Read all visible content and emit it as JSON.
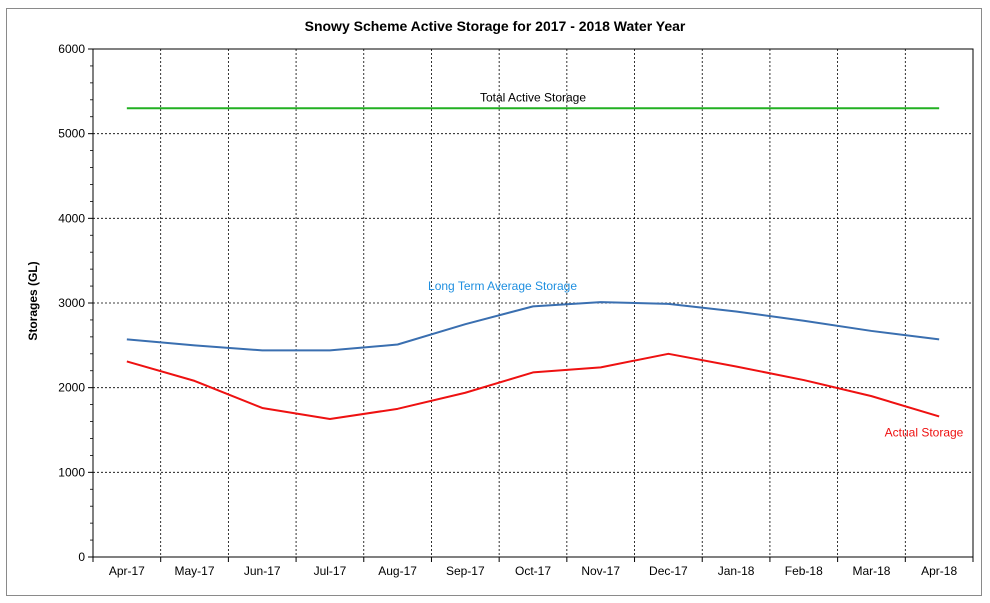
{
  "chart_data": {
    "type": "line",
    "title": "Snowy Scheme Active  Storage for 2017 - 2018 Water Year",
    "xlabel": "",
    "ylabel": "Storages (GL)",
    "categories": [
      "Apr-17",
      "May-17",
      "Jun-17",
      "Jul-17",
      "Aug-17",
      "Sep-17",
      "Oct-17",
      "Nov-17",
      "Dec-17",
      "Jan-18",
      "Feb-18",
      "Mar-18",
      "Apr-18"
    ],
    "ylim": [
      0,
      6000
    ],
    "yticks": [
      0,
      1000,
      2000,
      3000,
      4000,
      5000,
      6000
    ],
    "grid": true,
    "grid_style": "dotted",
    "legend": "none",
    "series": [
      {
        "name": "Total Active Storage",
        "color": "#22b022",
        "values": [
          5300,
          5300,
          5300,
          5300,
          5300,
          5300,
          5300,
          5300,
          5300,
          5300,
          5300,
          5300,
          5300
        ]
      },
      {
        "name": "Long Term Average  Storage",
        "color": "#3a6fb0",
        "label_color": "#1e8fe0",
        "values": [
          2570,
          2500,
          2440,
          2440,
          2510,
          2750,
          2960,
          3010,
          2990,
          2900,
          2790,
          2670,
          2570
        ]
      },
      {
        "name": "Actual Storage",
        "color": "#ee1111",
        "values": [
          2310,
          2080,
          1760,
          1630,
          1750,
          1940,
          2180,
          2240,
          2400,
          2250,
          2090,
          1900,
          1660
        ]
      }
    ]
  }
}
